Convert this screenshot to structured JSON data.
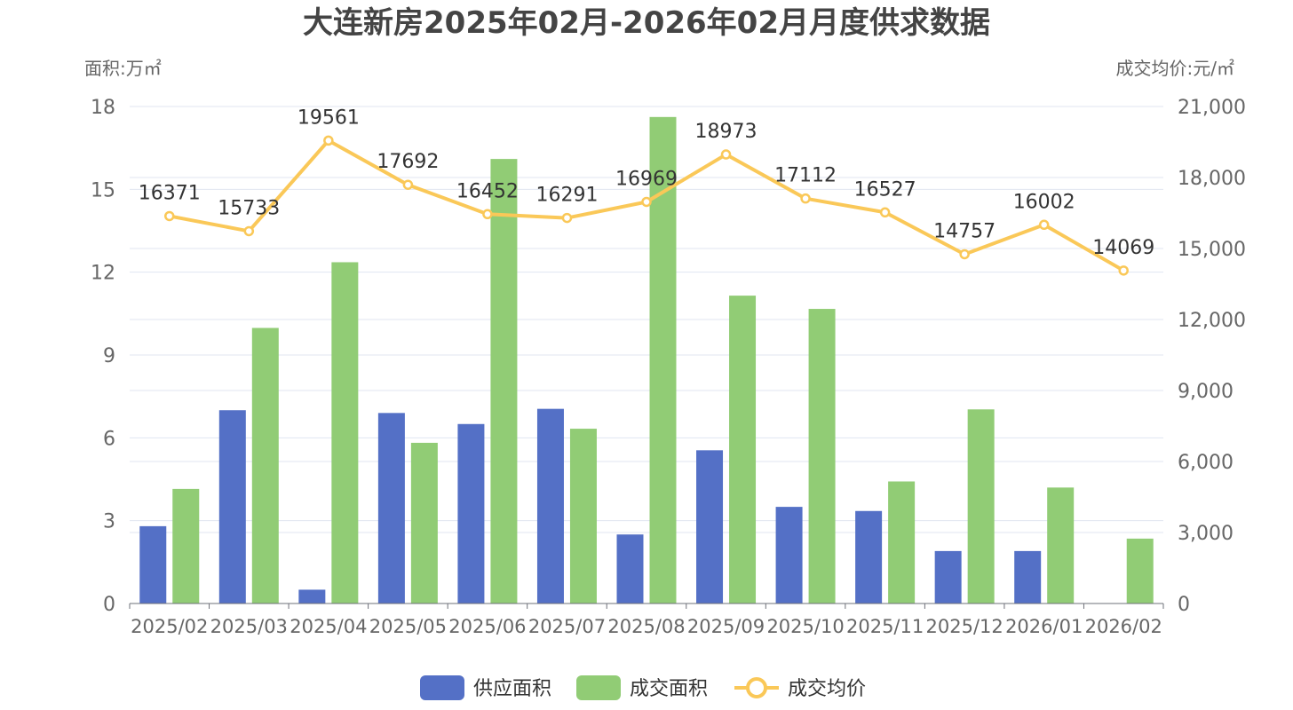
{
  "chart_data": {
    "type": "bar",
    "title": "大连新房2025年02月-2026年02月月度供求数据",
    "ylabel_left": "面积:万㎡",
    "ylabel_right": "成交均价:元/㎡",
    "categories": [
      "2025/02",
      "2025/03",
      "2025/04",
      "2025/05",
      "2025/06",
      "2025/07",
      "2025/08",
      "2025/09",
      "2025/10",
      "2025/11",
      "2025/12",
      "2026/01",
      "2026/02"
    ],
    "ylim_left": [
      0,
      18
    ],
    "yticks_left": [
      0,
      3,
      6,
      9,
      12,
      15,
      18
    ],
    "ylim_right": [
      0,
      21000
    ],
    "yticks_right": [
      "0",
      "3,000",
      "6,000",
      "9,000",
      "12,000",
      "15,000",
      "18,000",
      "21,000"
    ],
    "grid": true,
    "legend_position": "bottom",
    "series": [
      {
        "name": "供应面积",
        "type": "bar",
        "axis": "left",
        "color": "#5470c6",
        "values": [
          2.8,
          7.0,
          0.5,
          6.9,
          6.5,
          7.05,
          2.5,
          5.55,
          3.5,
          3.35,
          1.9,
          1.9,
          null
        ]
      },
      {
        "name": "成交面积",
        "type": "bar",
        "axis": "left",
        "color": "#91cc75",
        "values": [
          4.15,
          9.98,
          12.36,
          5.82,
          16.1,
          6.33,
          17.62,
          11.15,
          10.67,
          4.42,
          7.03,
          4.2,
          2.35
        ]
      },
      {
        "name": "成交均价",
        "type": "line",
        "axis": "right",
        "color": "#fac858",
        "values": [
          16371,
          15733,
          19561,
          17692,
          16452,
          16291,
          16969,
          18973,
          17112,
          16527,
          14757,
          16002,
          14069
        ],
        "labels": [
          "16371",
          "15733",
          "19561",
          "17692",
          "16452",
          "16291",
          "16969",
          "18973",
          "17112",
          "16527",
          "14757",
          "16002",
          "14069"
        ]
      }
    ]
  }
}
